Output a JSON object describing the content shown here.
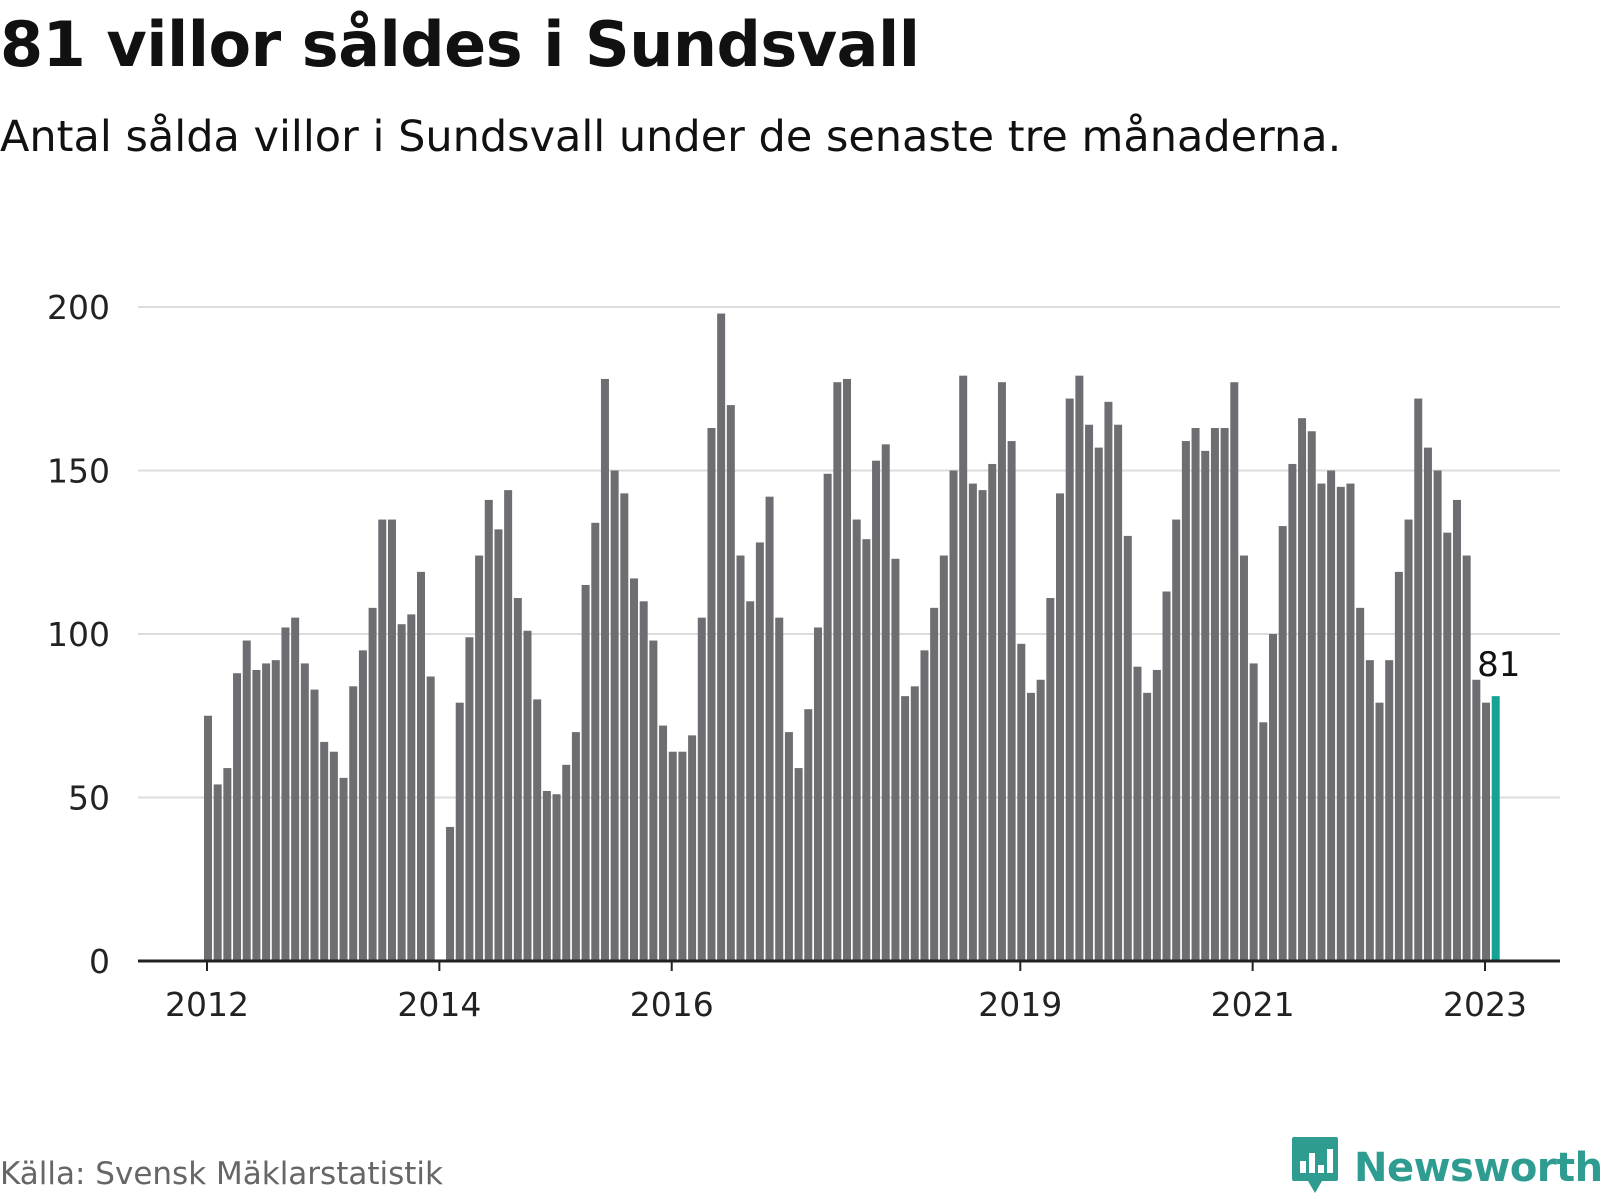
{
  "header": {
    "title": "81 villor såldes i Sundsvall",
    "subtitle": "Antal sålda villor i Sundsvall under de senaste tre månaderna."
  },
  "footer": {
    "source": "Källa: Svensk Mäklarstatistik",
    "brand": "Newsworthy",
    "brand_icon": "bar-chart-speech-bubble-icon"
  },
  "colors": {
    "bar": "#6e6d72",
    "highlight": "#14a394",
    "grid": "#dcdcdc",
    "axis": "#222222",
    "brand": "#2f9c91"
  },
  "chart_data": {
    "type": "bar",
    "title": "81 villor såldes i Sundsvall",
    "subtitle": "Antal sålda villor i Sundsvall under de senaste tre månaderna.",
    "xlabel": "",
    "ylabel": "",
    "ylim": [
      0,
      200
    ],
    "yticks": [
      "0",
      "50",
      "100",
      "150",
      "200"
    ],
    "xticks": [
      {
        "index": 0,
        "label": "2012"
      },
      {
        "index": 24,
        "label": "2014"
      },
      {
        "index": 48,
        "label": "2016"
      },
      {
        "index": 84,
        "label": "2019"
      },
      {
        "index": 108,
        "label": "2021"
      },
      {
        "index": 132,
        "label": "2023"
      }
    ],
    "start_month": "2012-01",
    "grid": true,
    "highlight": {
      "index": 133,
      "label": "81"
    },
    "series": [
      {
        "values": [
          75,
          54,
          59,
          88,
          98,
          89,
          91,
          92,
          102,
          105,
          91,
          83,
          67,
          64,
          56,
          84,
          95,
          108,
          135,
          135,
          103,
          106,
          119,
          87,
          null,
          41,
          79,
          99,
          124,
          141,
          132,
          144,
          111,
          101,
          80,
          52,
          51,
          60,
          70,
          115,
          134,
          178,
          150,
          143,
          117,
          110,
          98,
          72,
          64,
          64,
          69,
          105,
          163,
          198,
          170,
          124,
          110,
          128,
          142,
          105,
          70,
          59,
          77,
          102,
          149,
          177,
          178,
          135,
          129,
          153,
          158,
          123,
          81,
          84,
          95,
          108,
          124,
          150,
          179,
          146,
          144,
          152,
          177,
          159,
          97,
          82,
          86,
          111,
          143,
          172,
          179,
          164,
          157,
          171,
          164,
          130,
          90,
          82,
          89,
          113,
          135,
          159,
          163,
          156,
          163,
          163,
          177,
          124,
          91,
          73,
          100,
          133,
          152,
          166,
          162,
          146,
          150,
          145,
          146,
          108,
          92,
          79,
          92,
          119,
          135,
          172,
          157,
          150,
          131,
          141,
          124,
          86,
          79,
          81
        ]
      }
    ]
  }
}
